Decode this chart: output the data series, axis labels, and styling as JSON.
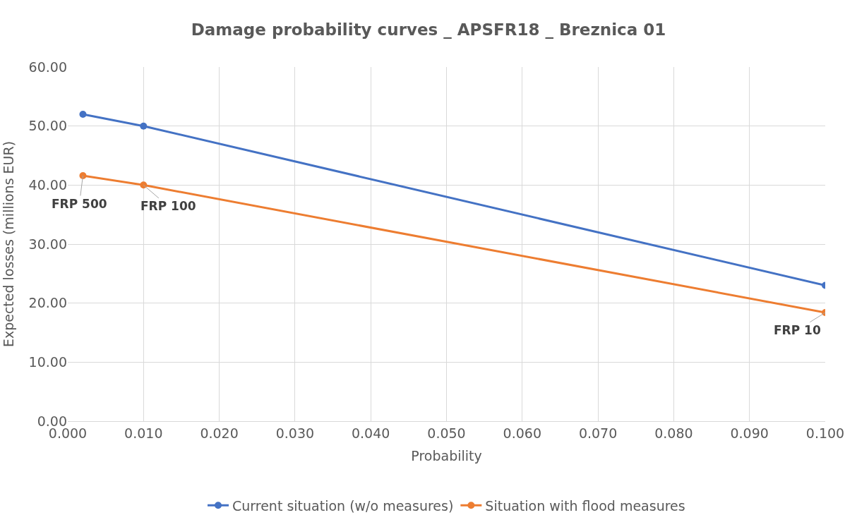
{
  "chart_data": {
    "type": "line",
    "title": "Damage probability curves _ APSFR18 _ Breznica 01",
    "xlabel": "Probability",
    "ylabel": "Expected losses (millions EUR)",
    "x": [
      0.002,
      0.01,
      0.1
    ],
    "series": [
      {
        "name": "Current situation (w/o measures)",
        "color": "#4472c4",
        "values": [
          52.0,
          50.0,
          23.0
        ]
      },
      {
        "name": "Situation with flood measures",
        "color": "#ed7d31",
        "values": [
          41.6,
          40.0,
          18.4
        ]
      }
    ],
    "xlim": [
      0,
      0.1
    ],
    "xticks": [
      {
        "value": 0,
        "label": "0.000"
      },
      {
        "value": 0.01,
        "label": "0.010"
      },
      {
        "value": 0.02,
        "label": "0.020"
      },
      {
        "value": 0.03,
        "label": "0.030"
      },
      {
        "value": 0.04,
        "label": "0.040"
      },
      {
        "value": 0.05,
        "label": "0.050"
      },
      {
        "value": 0.06,
        "label": "0.060"
      },
      {
        "value": 0.07,
        "label": "0.070"
      },
      {
        "value": 0.08,
        "label": "0.080"
      },
      {
        "value": 0.09,
        "label": "0.090"
      },
      {
        "value": 0.1,
        "label": "0.100"
      }
    ],
    "ylim": [
      0,
      60
    ],
    "yticks": [
      {
        "value": 0,
        "label": "0.00"
      },
      {
        "value": 10,
        "label": "10.00"
      },
      {
        "value": 20,
        "label": "20.00"
      },
      {
        "value": 30,
        "label": "30.00"
      },
      {
        "value": 40,
        "label": "40.00"
      },
      {
        "value": 50,
        "label": "50.00"
      },
      {
        "value": 60,
        "label": "60.00"
      }
    ],
    "annotations": [
      {
        "text": "FRP 500",
        "x": 0.002,
        "y": 41.6
      },
      {
        "text": "FRP 100",
        "x": 0.01,
        "y": 40.0
      },
      {
        "text": "FRP 10",
        "x": 0.1,
        "y": 18.4
      }
    ],
    "grid": true,
    "legend": "bottom",
    "marker": "circle",
    "line_style": "solid"
  }
}
